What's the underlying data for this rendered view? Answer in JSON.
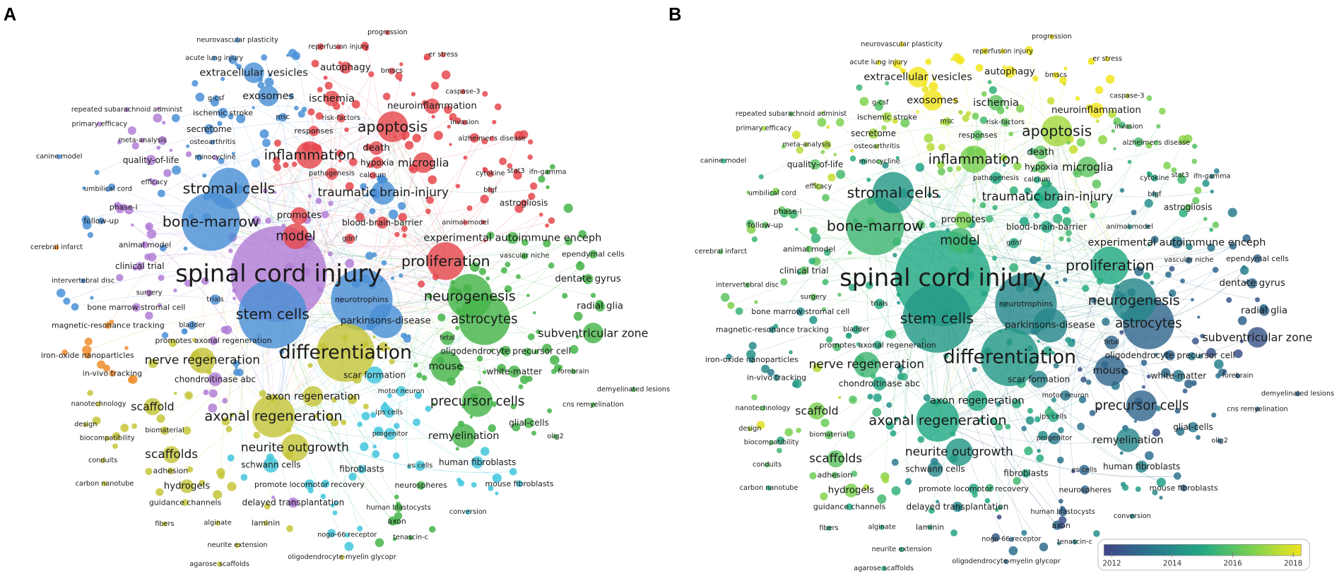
{
  "panels": [
    {
      "letter": "A",
      "coloring": "cluster"
    },
    {
      "letter": "B",
      "coloring": "average publication year"
    }
  ],
  "cluster_colors": {
    "red": "#e5484d",
    "blue": "#4a90d6",
    "green": "#45b449",
    "yellow": "#c5c53a",
    "purple": "#b27ed6",
    "cyan": "#3fc6dc",
    "orange": "#f08d2c"
  },
  "year_scale": {
    "min": 2012,
    "max": 2018,
    "ticks": [
      "2012",
      "2014",
      "2016",
      "2018"
    ],
    "colors": [
      "#414487",
      "#2a788e",
      "#22a884",
      "#7ad151",
      "#f1e51d"
    ]
  },
  "keywords": [
    {
      "label": "neurovascular plasticity",
      "cluster": "blue",
      "year": 2018
    },
    {
      "label": "progression",
      "cluster": "red",
      "year": 2018
    },
    {
      "label": "reperfusion injury",
      "cluster": "red",
      "year": 2018
    },
    {
      "label": "acute lung injury",
      "cluster": "blue",
      "year": 2018
    },
    {
      "label": "er stress",
      "cluster": "red",
      "year": 2018
    },
    {
      "label": "extracellular vesicles",
      "cluster": "blue",
      "year": 2018.5
    },
    {
      "label": "autophagy",
      "cluster": "red",
      "year": 2018
    },
    {
      "label": "bmscs",
      "cluster": "red",
      "year": 2018
    },
    {
      "label": "g-csf",
      "cluster": "blue",
      "year": 2016
    },
    {
      "label": "exosomes",
      "cluster": "blue",
      "year": 2018.5
    },
    {
      "label": "ischemia",
      "cluster": "red",
      "year": 2016
    },
    {
      "label": "caspase-3",
      "cluster": "red",
      "year": 2017
    },
    {
      "label": "neuroinflammation",
      "cluster": "red",
      "year": 2018
    },
    {
      "label": "repeated subarachnoid administ",
      "cluster": "purple",
      "year": 2016
    },
    {
      "label": "ischemic stroke",
      "cluster": "blue",
      "year": 2017
    },
    {
      "label": "msc",
      "cluster": "blue",
      "year": 2017
    },
    {
      "label": "risk-factors",
      "cluster": "red",
      "year": 2016
    },
    {
      "label": "primary efficacy",
      "cluster": "purple",
      "year": 2017
    },
    {
      "label": "apoptosis",
      "cluster": "red",
      "year": 2017
    },
    {
      "label": "invasion",
      "cluster": "red",
      "year": 2016
    },
    {
      "label": "secretome",
      "cluster": "blue",
      "year": 2017
    },
    {
      "label": "responses",
      "cluster": "red",
      "year": 2016
    },
    {
      "label": "meta-analysis",
      "cluster": "purple",
      "year": 2017
    },
    {
      "label": "osteoarthritis",
      "cluster": "blue",
      "year": 2017
    },
    {
      "label": "alzheimer's disease",
      "cluster": "red",
      "year": 2016
    },
    {
      "label": "death",
      "cluster": "red",
      "year": 2016
    },
    {
      "label": "inflammation",
      "cluster": "red",
      "year": 2016.5
    },
    {
      "label": "canine model",
      "cluster": "blue",
      "year": 2015
    },
    {
      "label": "quality-of-life",
      "cluster": "purple",
      "year": 2016
    },
    {
      "label": "minocycline",
      "cluster": "purple",
      "year": 2016
    },
    {
      "label": "hypoxia",
      "cluster": "red",
      "year": 2016
    },
    {
      "label": "microglia",
      "cluster": "red",
      "year": 2016
    },
    {
      "label": "pathogenesis",
      "cluster": "red",
      "year": 2015
    },
    {
      "label": "calcium",
      "cluster": "red",
      "year": 2015
    },
    {
      "label": "cytokine",
      "cluster": "red",
      "year": 2015
    },
    {
      "label": "stat3",
      "cluster": "red",
      "year": 2016
    },
    {
      "label": "ifn-gamma",
      "cluster": "green",
      "year": 2014
    },
    {
      "label": "efficacy",
      "cluster": "purple",
      "year": 2017
    },
    {
      "label": "umbilical cord",
      "cluster": "blue",
      "year": 2016
    },
    {
      "label": "stromal cells",
      "cluster": "blue",
      "year": 2014.5
    },
    {
      "label": "traumatic brain-injury",
      "cluster": "blue",
      "year": 2015
    },
    {
      "label": "bfgf",
      "cluster": "red",
      "year": 2014
    },
    {
      "label": "phase-i",
      "cluster": "purple",
      "year": 2016
    },
    {
      "label": "astrogliosis",
      "cluster": "red",
      "year": 2016
    },
    {
      "label": "follow-up",
      "cluster": "blue",
      "year": 2016
    },
    {
      "label": "bone-marrow",
      "cluster": "blue",
      "year": 2015.5
    },
    {
      "label": "promotes",
      "cluster": "red",
      "year": 2016.5
    },
    {
      "label": "blood-brain-barrier",
      "cluster": "red",
      "year": 2015
    },
    {
      "label": "animal-model",
      "cluster": "red",
      "year": 2014
    },
    {
      "label": "cerebral infarct",
      "cluster": "orange",
      "year": 2016
    },
    {
      "label": "animal model",
      "cluster": "purple",
      "year": 2016
    },
    {
      "label": "model",
      "cluster": "red",
      "year": 2015.5
    },
    {
      "label": "gdnf",
      "cluster": "red",
      "year": 2015
    },
    {
      "label": "experimental autoimmune enceph",
      "cluster": "green",
      "year": 2013.5
    },
    {
      "label": "vascular niche",
      "cluster": "green",
      "year": 2013
    },
    {
      "label": "ependymal cells",
      "cluster": "green",
      "year": 2013
    },
    {
      "label": "proliferation",
      "cluster": "red",
      "year": 2015
    },
    {
      "label": "clinical trial",
      "cluster": "purple",
      "year": 2016
    },
    {
      "label": "spinal cord injury",
      "cluster": "purple",
      "year": 2015
    },
    {
      "label": "intervertebral disc",
      "cluster": "blue",
      "year": 2016
    },
    {
      "label": "dentate gyrus",
      "cluster": "green",
      "year": 2013
    },
    {
      "label": "surgery",
      "cluster": "purple",
      "year": 2016
    },
    {
      "label": "trials",
      "cluster": "blue",
      "year": 2015
    },
    {
      "label": "neurotrophins",
      "cluster": "blue",
      "year": 2014
    },
    {
      "label": "neurogenesis",
      "cluster": "green",
      "year": 2014
    },
    {
      "label": "radial glia",
      "cluster": "green",
      "year": 2013
    },
    {
      "label": "bone marrow stromal cell",
      "cluster": "purple",
      "year": 2014
    },
    {
      "label": "stem cells",
      "cluster": "blue",
      "year": 2014.5
    },
    {
      "label": "parkinsons-disease",
      "cluster": "blue",
      "year": 2014
    },
    {
      "label": "astrocytes",
      "cluster": "green",
      "year": 2013
    },
    {
      "label": "subventricular zone",
      "cluster": "green",
      "year": 2012.5
    },
    {
      "label": "magnetic-resonance tracking",
      "cluster": "orange",
      "year": 2014
    },
    {
      "label": "bladder",
      "cluster": "blue",
      "year": 2015
    },
    {
      "label": "fetal",
      "cluster": "green",
      "year": 2013
    },
    {
      "label": "promotes axonal regeneration",
      "cluster": "purple",
      "year": 2015
    },
    {
      "label": "oligodendrocyte precursor cell",
      "cluster": "green",
      "year": 2013
    },
    {
      "label": "differentiation",
      "cluster": "yellow",
      "year": 2014.5
    },
    {
      "label": "iron-oxide nanoparticles",
      "cluster": "orange",
      "year": 2014
    },
    {
      "label": "nerve regeneration",
      "cluster": "yellow",
      "year": 2015.5
    },
    {
      "label": "mouse",
      "cluster": "green",
      "year": 2013
    },
    {
      "label": "white-matter",
      "cluster": "green",
      "year": 2013.5
    },
    {
      "label": "forebrain",
      "cluster": "green",
      "year": 2013
    },
    {
      "label": "in-vivo tracking",
      "cluster": "orange",
      "year": 2014
    },
    {
      "label": "chondroitinase abc",
      "cluster": "purple",
      "year": 2015
    },
    {
      "label": "scar formation",
      "cluster": "cyan",
      "year": 2014
    },
    {
      "label": "demyelinated lesions",
      "cluster": "green",
      "year": 2013
    },
    {
      "label": "axon regeneration",
      "cluster": "yellow",
      "year": 2015
    },
    {
      "label": "motor neuron",
      "cluster": "cyan",
      "year": 2013.5
    },
    {
      "label": "nanotechnology",
      "cluster": "yellow",
      "year": 2016
    },
    {
      "label": "scaffold",
      "cluster": "yellow",
      "year": 2016.5
    },
    {
      "label": "cns remyelination",
      "cluster": "green",
      "year": 2013
    },
    {
      "label": "axonal regeneration",
      "cluster": "yellow",
      "year": 2015
    },
    {
      "label": "precursor cells",
      "cluster": "green",
      "year": 2013
    },
    {
      "label": "ips cells",
      "cluster": "cyan",
      "year": 2015
    },
    {
      "label": "design",
      "cluster": "yellow",
      "year": 2017
    },
    {
      "label": "biomaterial",
      "cluster": "yellow",
      "year": 2016
    },
    {
      "label": "glial-cells",
      "cluster": "green",
      "year": 2013.5
    },
    {
      "label": "biocompatibility",
      "cluster": "yellow",
      "year": 2016
    },
    {
      "label": "progenitor",
      "cluster": "cyan",
      "year": 2013.5
    },
    {
      "label": "remyelination",
      "cluster": "green",
      "year": 2014
    },
    {
      "label": "olig2",
      "cluster": "green",
      "year": 2013
    },
    {
      "label": "neurite outgrowth",
      "cluster": "yellow",
      "year": 2014.5
    },
    {
      "label": "conduits",
      "cluster": "yellow",
      "year": 2016
    },
    {
      "label": "scaffolds",
      "cluster": "yellow",
      "year": 2016
    },
    {
      "label": "schwann cells",
      "cluster": "cyan",
      "year": 2014
    },
    {
      "label": "fibroblasts",
      "cluster": "cyan",
      "year": 2015
    },
    {
      "label": "es cells",
      "cluster": "cyan",
      "year": 2013
    },
    {
      "label": "human fibroblasts",
      "cluster": "cyan",
      "year": 2014
    },
    {
      "label": "adhesion",
      "cluster": "yellow",
      "year": 2016
    },
    {
      "label": "carbon nanotube",
      "cluster": "yellow",
      "year": 2015
    },
    {
      "label": "hydrogels",
      "cluster": "yellow",
      "year": 2016.5
    },
    {
      "label": "promote locomotor recovery",
      "cluster": "cyan",
      "year": 2015
    },
    {
      "label": "neurospheres",
      "cluster": "green",
      "year": 2013
    },
    {
      "label": "mouse fibroblasts",
      "cluster": "cyan",
      "year": 2013
    },
    {
      "label": "guidance channels",
      "cluster": "yellow",
      "year": 2015
    },
    {
      "label": "delayed transplantation",
      "cluster": "purple",
      "year": 2014
    },
    {
      "label": "human blastocysts",
      "cluster": "green",
      "year": 2013
    },
    {
      "label": "conversion",
      "cluster": "cyan",
      "year": 2014
    },
    {
      "label": "fibers",
      "cluster": "yellow",
      "year": 2015
    },
    {
      "label": "alginate",
      "cluster": "yellow",
      "year": 2015
    },
    {
      "label": "laminin",
      "cluster": "yellow",
      "year": 2015
    },
    {
      "label": "axon",
      "cluster": "green",
      "year": 2012.5
    },
    {
      "label": "nogo-66 receptor",
      "cluster": "cyan",
      "year": 2013
    },
    {
      "label": "tenascin-c",
      "cluster": "green",
      "year": 2014
    },
    {
      "label": "neurite extension",
      "cluster": "yellow",
      "year": 2015
    },
    {
      "label": "oligodendrocyte-myelin glycopr",
      "cluster": "yellow",
      "year": 2013
    },
    {
      "label": "agarose scaffolds",
      "cluster": "yellow",
      "year": 2015
    }
  ]
}
